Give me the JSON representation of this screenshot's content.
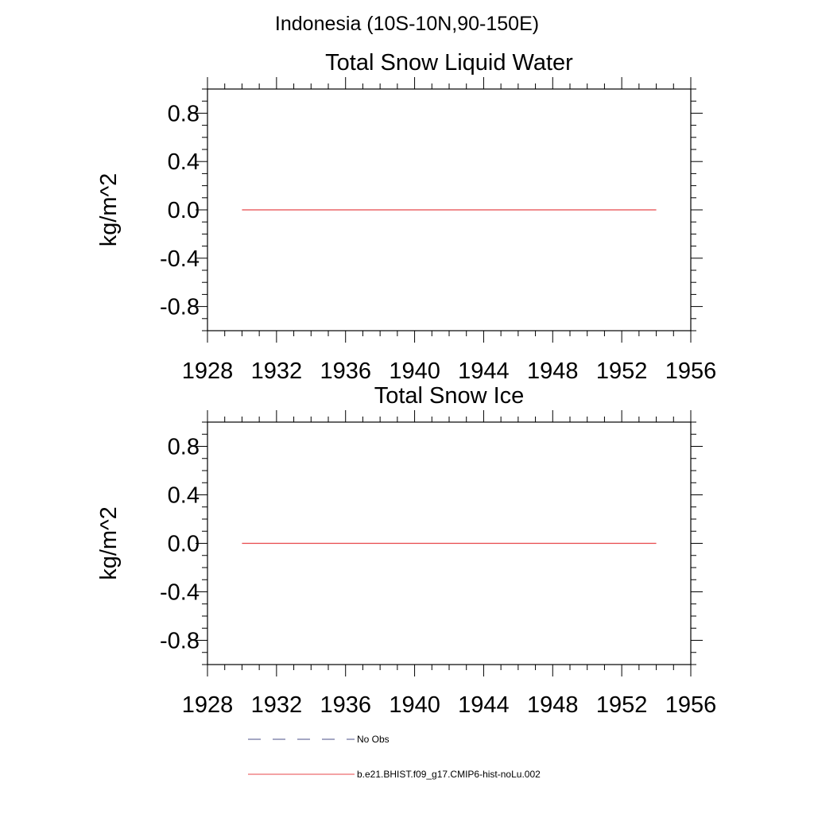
{
  "figure": {
    "title": "Indonesia (10S-10N,90-150E)"
  },
  "legend": {
    "items": [
      {
        "label": "No Obs",
        "color": "#4a4f8a",
        "dash": "dashed"
      },
      {
        "label": "b.e21.BHIST.f09_g17.CMIP6-hist-noLu.002",
        "color": "#e8474a",
        "dash": "solid"
      }
    ]
  },
  "chart_data": [
    {
      "type": "line",
      "title": "Total Snow Liquid Water",
      "xlabel": "",
      "ylabel": "kg/m^2",
      "xlim": [
        1928,
        1956
      ],
      "ylim": [
        -1.0,
        1.0
      ],
      "xticks": [
        "1928",
        "1932",
        "1936",
        "1940",
        "1944",
        "1948",
        "1952",
        "1956"
      ],
      "yticks": [
        "0.8",
        "0.4",
        "0.0",
        "-0.4",
        "-0.8"
      ],
      "series": [
        {
          "name": "b.e21.BHIST.f09_g17.CMIP6-hist-noLu.002",
          "color": "#e8474a",
          "x": [
            1930,
            1954
          ],
          "y": [
            0.0,
            0.0
          ]
        }
      ]
    },
    {
      "type": "line",
      "title": "Total Snow Ice",
      "xlabel": "",
      "ylabel": "kg/m^2",
      "xlim": [
        1928,
        1956
      ],
      "ylim": [
        -1.0,
        1.0
      ],
      "xticks": [
        "1928",
        "1932",
        "1936",
        "1940",
        "1944",
        "1948",
        "1952",
        "1956"
      ],
      "yticks": [
        "0.8",
        "0.4",
        "0.0",
        "-0.4",
        "-0.8"
      ],
      "series": [
        {
          "name": "b.e21.BHIST.f09_g17.CMIP6-hist-noLu.002",
          "color": "#e8474a",
          "x": [
            1930,
            1954
          ],
          "y": [
            0.0,
            0.0
          ]
        }
      ]
    }
  ]
}
